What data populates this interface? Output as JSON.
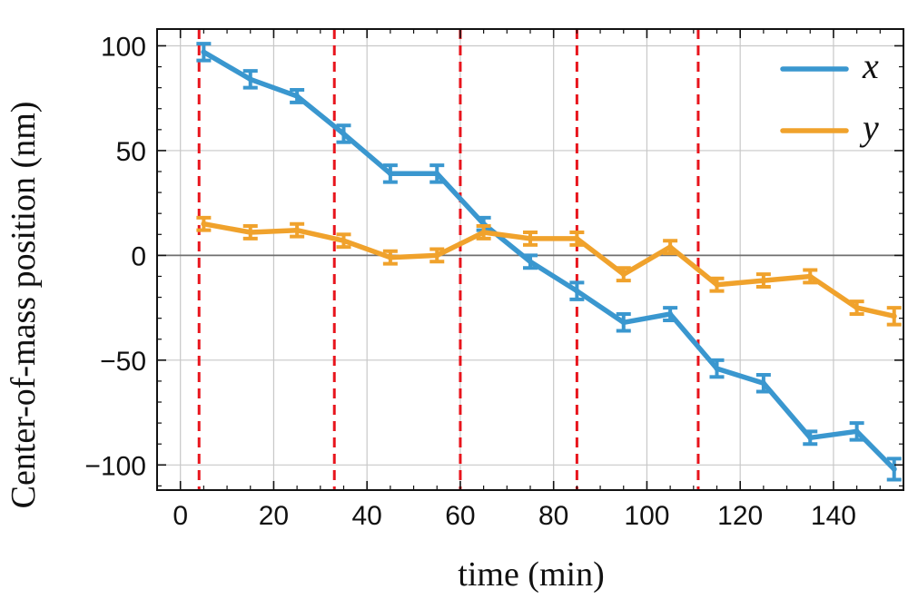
{
  "chart_data": {
    "type": "line",
    "title": "",
    "xlabel": "time (min)",
    "ylabel": "Center-of-mass position (nm)",
    "xlim": [
      -5,
      155
    ],
    "ylim": [
      -112,
      108
    ],
    "xticks": [
      0,
      20,
      40,
      60,
      80,
      100,
      120,
      140
    ],
    "xtick_labels": [
      "0",
      "20",
      "40",
      "60",
      "80",
      "100",
      "120",
      "140"
    ],
    "yticks": [
      100,
      50,
      0,
      -50,
      -100
    ],
    "ytick_labels": [
      "100",
      "50",
      "0",
      "−50",
      "−100"
    ],
    "grid": true,
    "legend_position": "top-right",
    "x": [
      5,
      15,
      25,
      35,
      45,
      55,
      65,
      75,
      85,
      95,
      105,
      115,
      125,
      135,
      145,
      153
    ],
    "series": [
      {
        "name": "x",
        "color": "#3a97cf",
        "values": [
          97,
          84,
          76,
          58,
          39,
          39,
          15,
          -3,
          -17,
          -32,
          -28,
          -54,
          -61,
          -87,
          -84,
          -102
        ],
        "errors": [
          4,
          4,
          3,
          4,
          4,
          4,
          3,
          3,
          4,
          4,
          3,
          4,
          4,
          3,
          4,
          5
        ]
      },
      {
        "name": "y",
        "color": "#f0a22c",
        "values": [
          15,
          11,
          12,
          7,
          -1,
          0,
          11,
          8,
          8,
          -9,
          4,
          -14,
          -12,
          -10,
          -25,
          -29
        ],
        "errors": [
          3,
          3,
          3,
          3,
          3,
          3,
          3,
          3,
          3,
          3,
          3,
          3,
          3,
          3,
          3,
          4
        ]
      }
    ],
    "reference_lines": {
      "vertical_dashed_red": [
        4,
        33,
        60,
        85,
        111
      ],
      "horizontal_zero": 0
    }
  }
}
